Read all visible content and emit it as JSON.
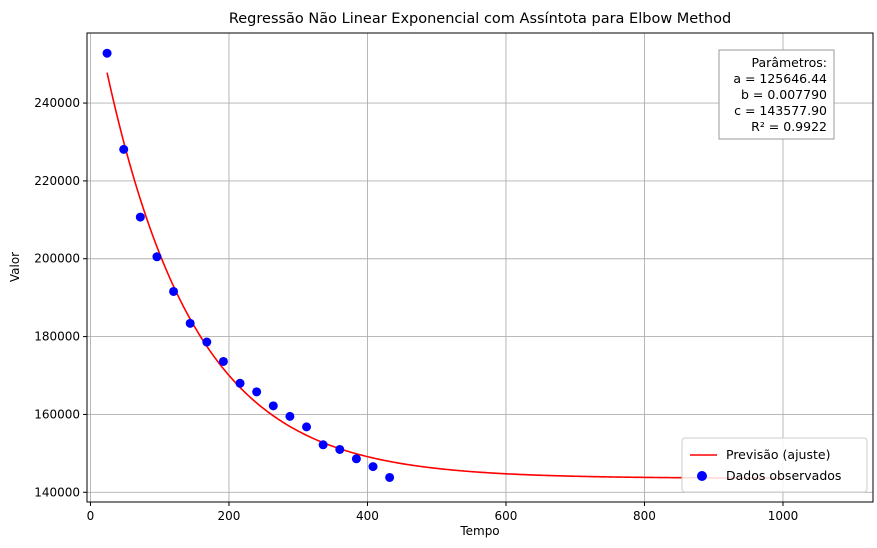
{
  "chart_data": {
    "type": "scatter",
    "title": "Regressão Não Linear Exponencial com Assíntota para Elbow Method",
    "xlabel": "Tempo",
    "ylabel": "Valor",
    "xlim": [
      -5,
      1130
    ],
    "ylim": [
      137500,
      258000
    ],
    "grid": true,
    "xticks": [
      0,
      200,
      400,
      600,
      800,
      1000
    ],
    "yticks": [
      140000,
      160000,
      180000,
      200000,
      220000,
      240000
    ],
    "series": [
      {
        "name": "Dados observados",
        "kind": "scatter",
        "color": "#0000ff",
        "points": [
          [
            24,
            252800
          ],
          [
            48,
            228100
          ],
          [
            72,
            210700
          ],
          [
            96,
            200500
          ],
          [
            120,
            191600
          ],
          [
            144,
            183400
          ],
          [
            168,
            178600
          ],
          [
            192,
            173600
          ],
          [
            216,
            168000
          ],
          [
            240,
            165800
          ],
          [
            264,
            162200
          ],
          [
            288,
            159500
          ],
          [
            312,
            156800
          ],
          [
            336,
            152200
          ],
          [
            360,
            151000
          ],
          [
            384,
            148600
          ],
          [
            408,
            146600
          ],
          [
            432,
            143800
          ]
        ]
      },
      {
        "name": "Previsão (ajuste)",
        "kind": "line",
        "color": "#ff0000",
        "model": "a*exp(-b*x)+c",
        "x_range": [
          24,
          1000
        ]
      }
    ],
    "parameters": {
      "a": 125646.44,
      "b": 0.00779,
      "c": 143577.9
    },
    "param_box": {
      "title": "Parâmetros:",
      "lines": [
        "a = 125646.44",
        "b = 0.007790",
        "c = 143577.90",
        "R² = 0.9922"
      ],
      "placement": "top-right"
    },
    "legend": {
      "placement": "lower-right",
      "entries": [
        "Previsão (ajuste)",
        "Dados observados"
      ]
    }
  }
}
